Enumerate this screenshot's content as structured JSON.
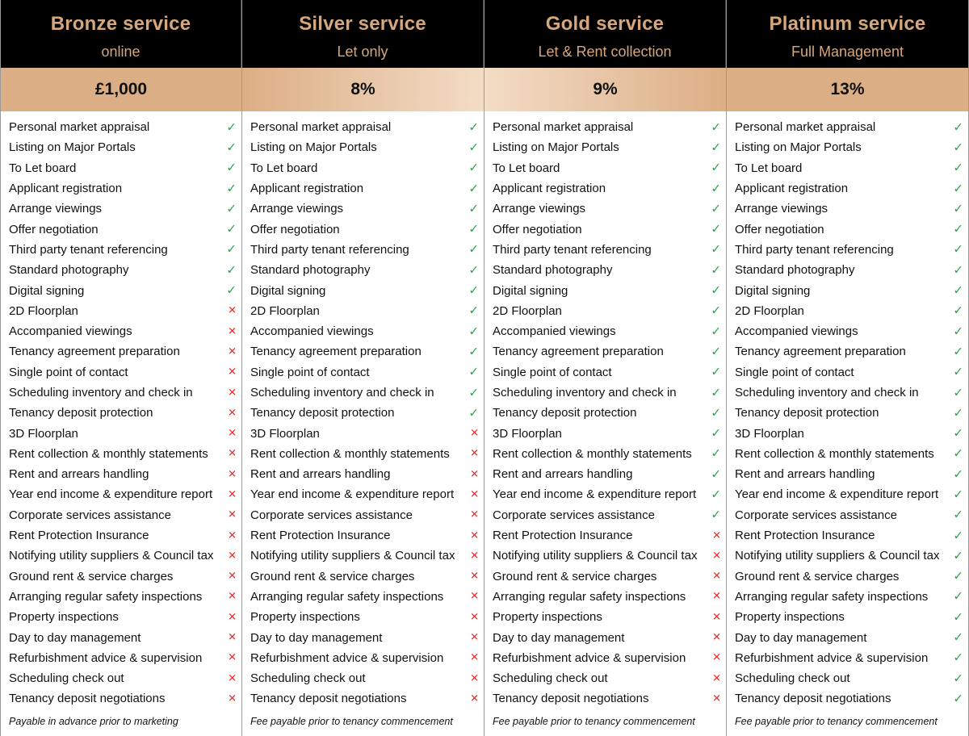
{
  "features": [
    "Personal market appraisal",
    "Listing on Major Portals",
    "To Let board",
    "Applicant registration",
    "Arrange viewings",
    "Offer negotiation",
    "Third party tenant referencing",
    "Standard photography",
    "Digital signing",
    "2D Floorplan",
    "Accompanied viewings",
    "Tenancy agreement preparation",
    "Single point of contact",
    "Scheduling inventory and check in",
    "Tenancy deposit protection",
    "3D Floorplan",
    "Rent collection & monthly statements",
    "Rent and arrears handling",
    "Year end income & expenditure report",
    "Corporate services assistance",
    "Rent Protection Insurance",
    "Notifying utility suppliers & Council tax",
    "Ground rent & service charges",
    "Arranging regular safety inspections",
    "Property inspections",
    "Day to day management",
    "Refurbishment advice & supervision",
    "Scheduling check out",
    "Tenancy deposit negotiations"
  ],
  "marks": {
    "yes": "✓",
    "no": "✕"
  },
  "colors": {
    "header_bg": "#000000",
    "header_text": "#d6a77c",
    "price_band": "#dcae85",
    "tick": "#2aa84a",
    "cross": "#e03030"
  },
  "plans": [
    {
      "title": "Bronze service",
      "subtitle": "online",
      "price": "£1,000",
      "included_count": 9,
      "note": "Payable in advance prior to marketing"
    },
    {
      "title": "Silver service",
      "subtitle": "Let only",
      "price": "8%",
      "included_count": 15,
      "note": "Fee payable prior to tenancy commencement"
    },
    {
      "title": "Gold service",
      "subtitle": "Let & Rent collection",
      "price": "9%",
      "included_count": 20,
      "note": "Fee payable prior to tenancy commencement"
    },
    {
      "title": "Platinum service",
      "subtitle": "Full Management",
      "price": "13%",
      "included_count": 29,
      "note": "Fee payable prior to tenancy commencement"
    }
  ]
}
